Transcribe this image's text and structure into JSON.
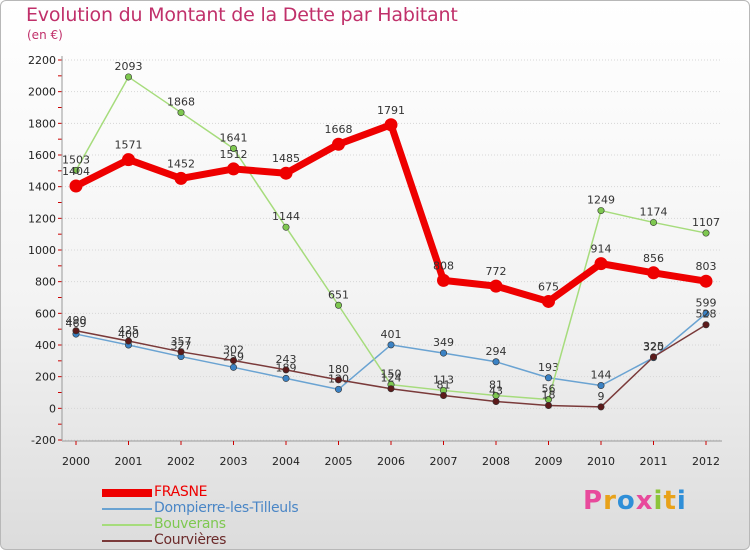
{
  "title": "Evolution du Montant de la Dette par Habitant",
  "subtitle": "(en €)",
  "logo": {
    "text": "Proxiti",
    "letters": [
      "P",
      "r",
      "o",
      "x",
      "i",
      "t",
      "i"
    ],
    "colors": [
      "#e84a9c",
      "#e8a21a",
      "#2f8fd8",
      "#e84a9c",
      "#8cc43a",
      "#e8a21a",
      "#2f8fd8"
    ]
  },
  "chart_data": {
    "type": "line",
    "x": [
      "2000",
      "2001",
      "2002",
      "2003",
      "2004",
      "2005",
      "2006",
      "2007",
      "2008",
      "2009",
      "2010",
      "2011",
      "2012"
    ],
    "ylim": [
      -200,
      2200
    ],
    "yticks": [
      -200,
      0,
      200,
      400,
      600,
      800,
      1000,
      1200,
      1400,
      1600,
      1800,
      2000,
      2200
    ],
    "grid": "horizontal",
    "legend": "bottom-left",
    "series": [
      {
        "name": "Dompierre-les-Tilleuls",
        "color": "#6aa3d2",
        "marker_color": "#3b82c4",
        "text_color": "#4a86c6",
        "values": [
          469,
          400,
          327,
          259,
          189,
          120,
          401,
          349,
          294,
          193,
          144,
          320,
          599
        ]
      },
      {
        "name": "Bouverans",
        "color": "#a6dc7c",
        "marker_color": "#7ec850",
        "text_color": "#7ec850",
        "values": [
          1503,
          2093,
          1868,
          1641,
          1144,
          651,
          150,
          113,
          81,
          56,
          1249,
          1174,
          1107
        ]
      },
      {
        "name": "Courvières",
        "color": "#7a3a3a",
        "marker_color": "#5c1a1a",
        "text_color": "#6b2a2a",
        "values": [
          490,
          425,
          357,
          302,
          243,
          180,
          124,
          81,
          43,
          18,
          9,
          325,
          528
        ]
      },
      {
        "name": "FRASNE",
        "color": "#ee0000",
        "marker_color": "#ee0000",
        "text_color": "#ee0000",
        "values": [
          1404,
          1571,
          1452,
          1512,
          1485,
          1668,
          1791,
          808,
          772,
          675,
          914,
          856,
          803
        ]
      }
    ],
    "legend_order": [
      "FRASNE",
      "Dompierre-les-Tilleuls",
      "Bouverans",
      "Courvières"
    ]
  }
}
